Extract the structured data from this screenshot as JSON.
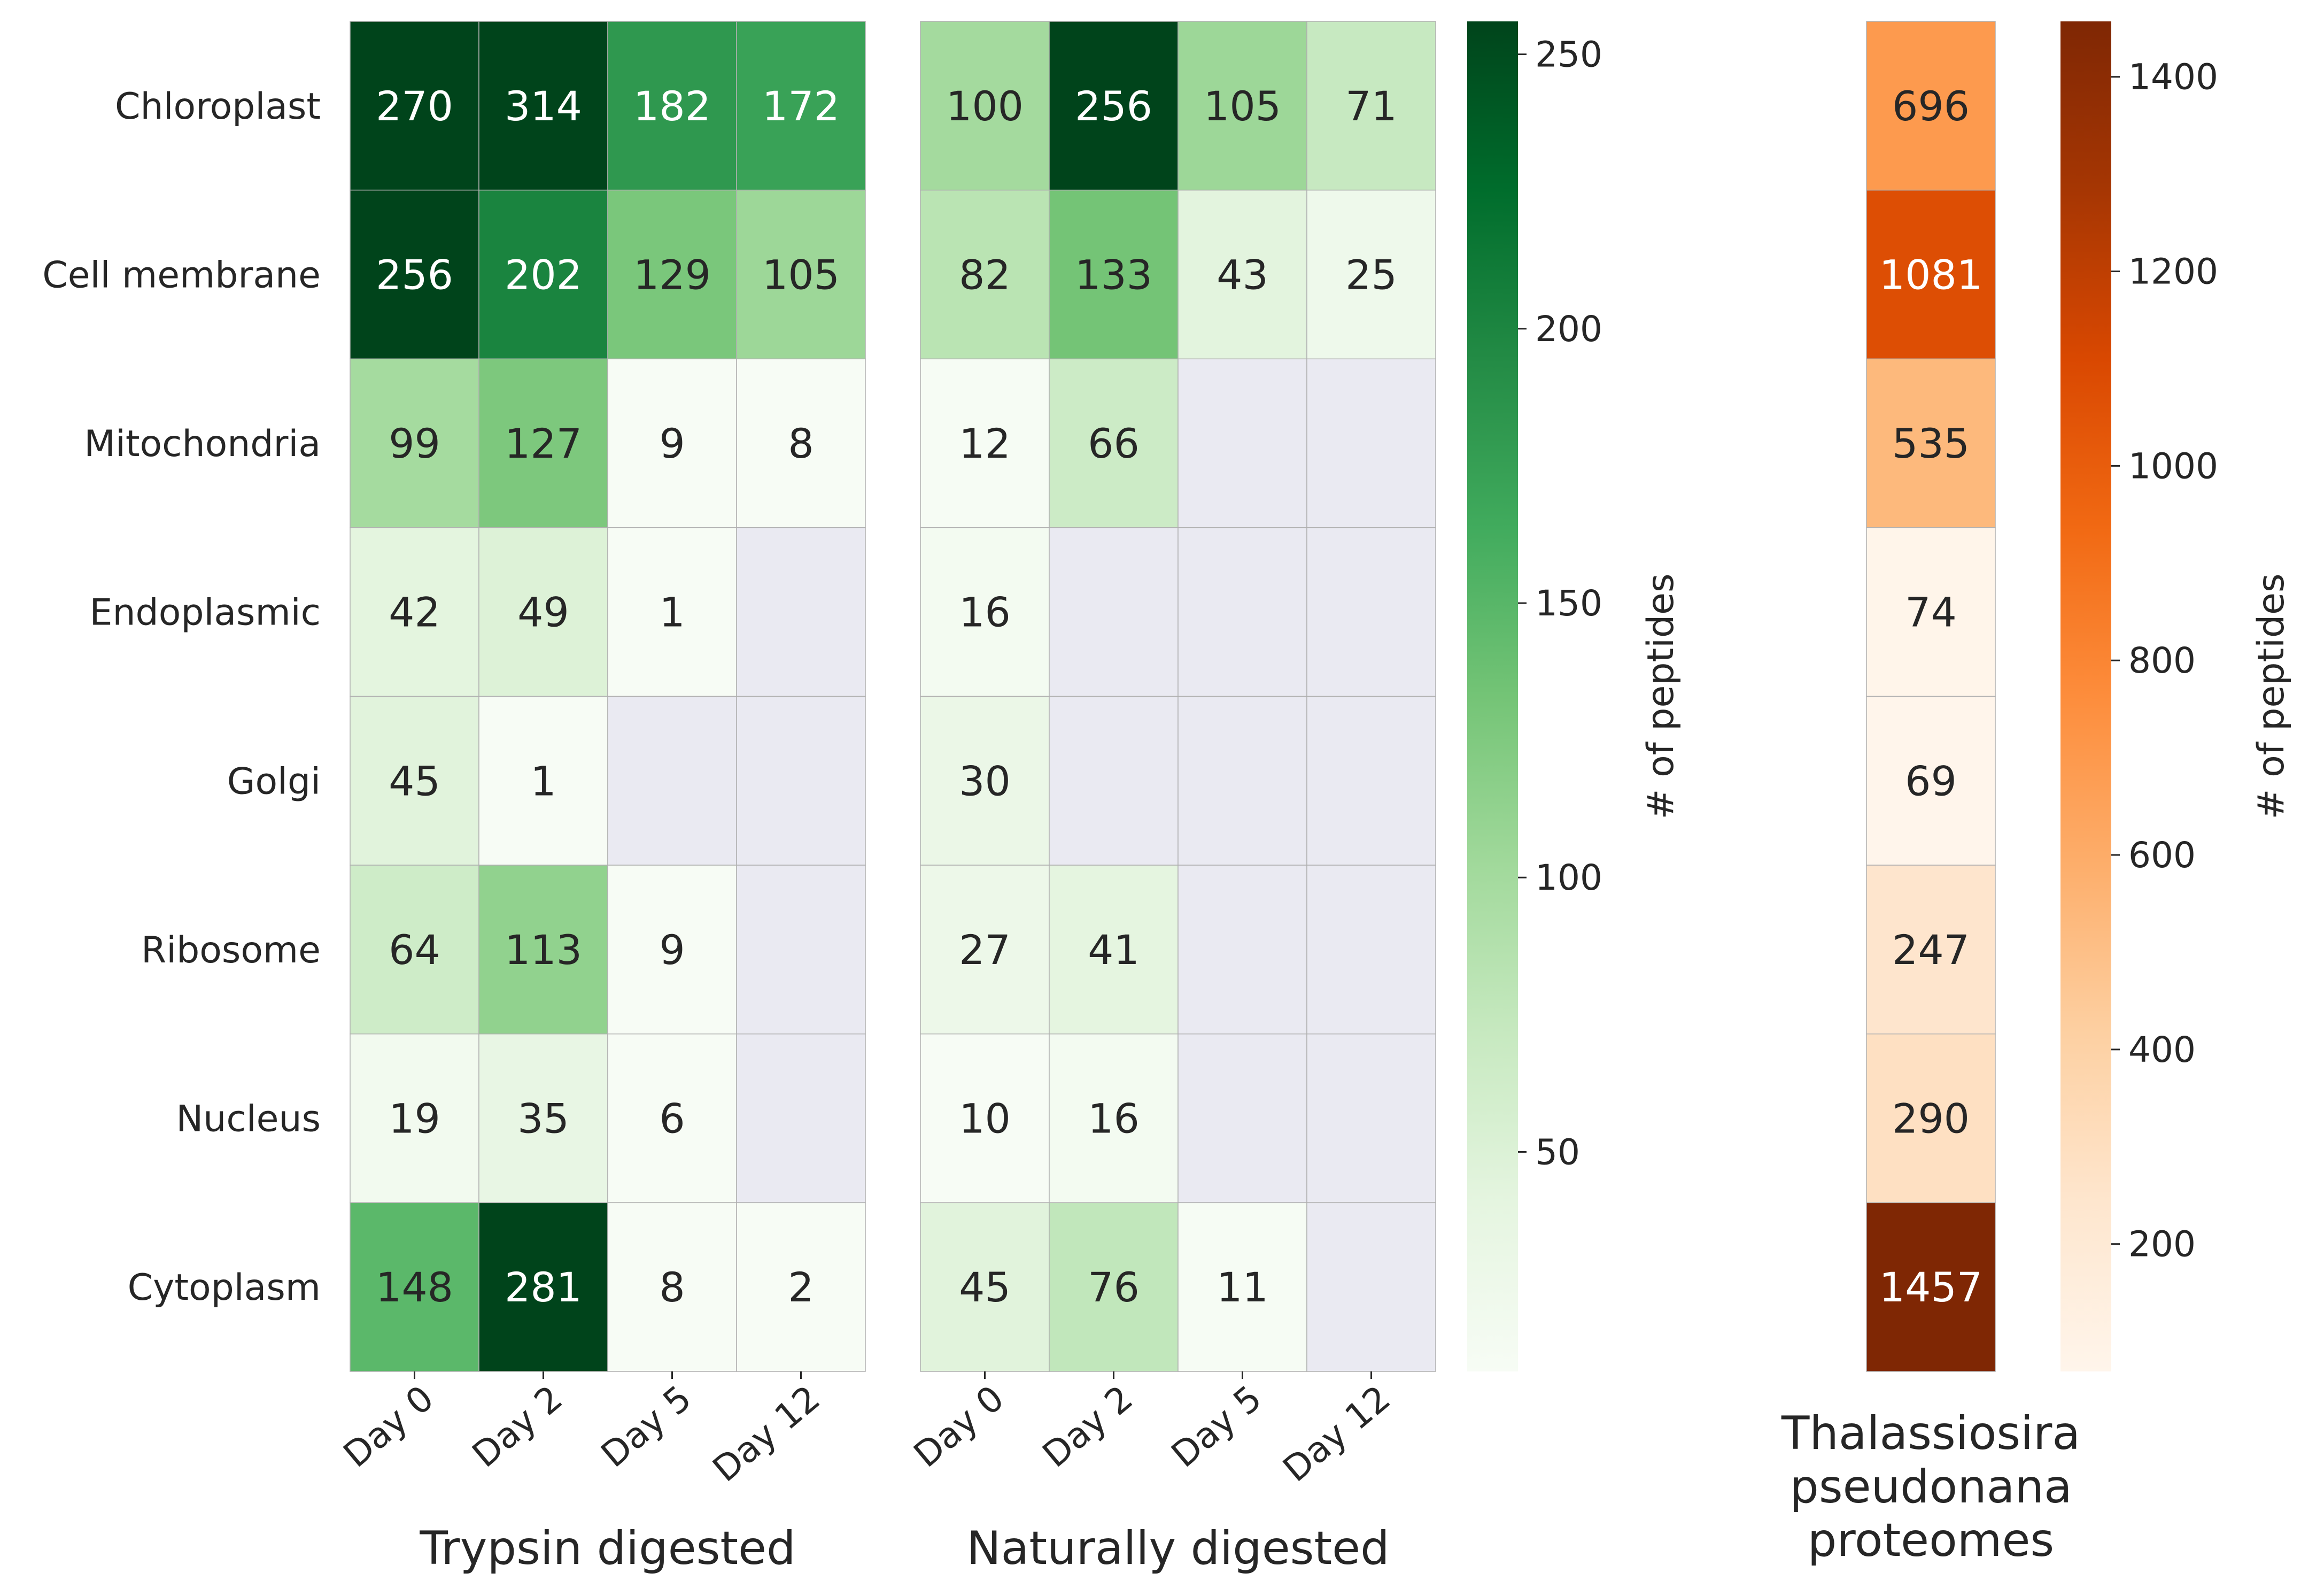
{
  "chart_data": {
    "type": "heatmap",
    "rows": [
      "Chloroplast",
      "Cell membrane",
      "Mitochondria",
      "Endoplasmic",
      "Golgi",
      "Ribosome",
      "Nucleus",
      "Cytoplasm"
    ],
    "panels": [
      {
        "title": "Trypsin digested",
        "columns": [
          "Day 0",
          "Day 2",
          "Day 5",
          "Day 12"
        ],
        "values": [
          [
            270,
            314,
            182,
            172
          ],
          [
            256,
            202,
            129,
            105
          ],
          [
            99,
            127,
            9,
            8
          ],
          [
            42,
            49,
            1,
            null
          ],
          [
            45,
            1,
            null,
            null
          ],
          [
            64,
            113,
            9,
            null
          ],
          [
            19,
            35,
            6,
            null
          ],
          [
            148,
            281,
            8,
            2
          ]
        ]
      },
      {
        "title": "Naturally digested",
        "columns": [
          "Day 0",
          "Day 2",
          "Day 5",
          "Day 12"
        ],
        "values": [
          [
            100,
            256,
            105,
            71
          ],
          [
            82,
            133,
            43,
            25
          ],
          [
            12,
            66,
            null,
            null
          ],
          [
            16,
            null,
            null,
            null
          ],
          [
            30,
            null,
            null,
            null
          ],
          [
            27,
            41,
            null,
            null
          ],
          [
            10,
            16,
            null,
            null
          ],
          [
            45,
            76,
            11,
            null
          ]
        ]
      },
      {
        "title": "Thalassiosira pseudonana proteomes",
        "title_lines": [
          "Thalassiosira",
          "pseudonana",
          "proteomes"
        ],
        "columns": [],
        "values": [
          [
            696
          ],
          [
            1081
          ],
          [
            535
          ],
          [
            74
          ],
          [
            69
          ],
          [
            247
          ],
          [
            290
          ],
          [
            1457
          ]
        ]
      }
    ],
    "colorbars": [
      {
        "label": "# of peptides",
        "colormap": "greens",
        "range": [
          10,
          256
        ],
        "ticks": [
          50,
          100,
          150,
          200,
          250
        ],
        "applies_to_panels": [
          0,
          1
        ]
      },
      {
        "label": "# of peptides",
        "colormap": "oranges",
        "range": [
          69,
          1457
        ],
        "ticks": [
          200,
          400,
          600,
          800,
          1000,
          1200,
          1400
        ],
        "applies_to_panels": [
          2
        ]
      }
    ],
    "missing_cell_color": "#eaeaf2",
    "grid_line_color": "#b0b0b0",
    "green_stops": [
      "#f7fcf5",
      "#e5f5e0",
      "#c7e9c0",
      "#a1d99b",
      "#74c476",
      "#41ab5d",
      "#238b45",
      "#006d2c",
      "#00441b"
    ],
    "orange_stops": [
      "#fff5eb",
      "#fee6ce",
      "#fdd0a2",
      "#fdae6b",
      "#fd8d3c",
      "#f16913",
      "#d94801",
      "#a63603",
      "#7f2704"
    ]
  }
}
